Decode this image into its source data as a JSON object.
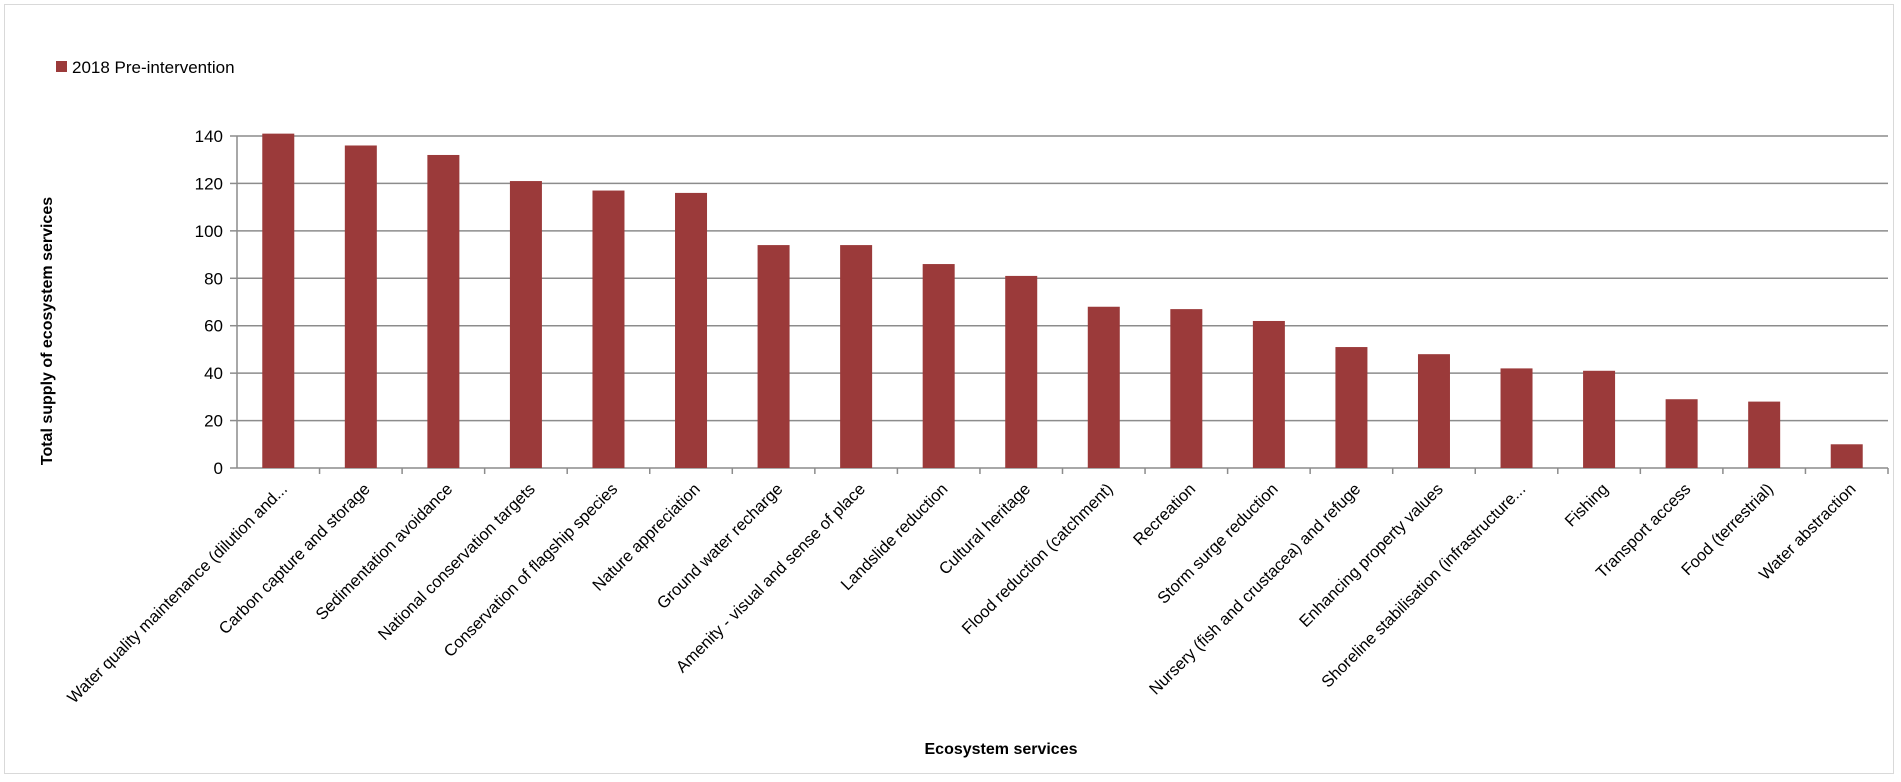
{
  "chart_data": {
    "type": "bar",
    "title": "",
    "xlabel": "Ecosystem services",
    "ylabel": "Total supply of ecosystem services",
    "ylim": [
      0,
      140
    ],
    "yticks": [
      0,
      20,
      40,
      60,
      80,
      100,
      120,
      140
    ],
    "grid": true,
    "legend_position": "top-left",
    "colors": {
      "bar": "#9b3a3a",
      "grid": "#8c8c8c"
    },
    "categories": [
      "Water quality maintenance (dilution and...",
      "Carbon capture and storage",
      "Sedimentation avoidance",
      "National conservation targets",
      "Conservation of flagship species",
      "Nature appreciation",
      "Ground water recharge",
      "Amenity - visual and sense of place",
      "Landslide  reduction",
      "Cultural heritage",
      "Flood reduction (catchment)",
      "Recreation",
      "Storm surge reduction",
      "Nursery (fish and crustacea) and refuge",
      "Enhancing property values",
      "Shoreline stabilisation (infrastructure...",
      "Fishing",
      "Transport access",
      "Food (terrestrial)",
      "Water abstraction"
    ],
    "series": [
      {
        "name": "2018 Pre-intervention",
        "values": [
          141,
          136,
          132,
          121,
          117,
          116,
          94,
          94,
          86,
          81,
          68,
          67,
          62,
          51,
          48,
          42,
          41,
          29,
          28,
          10
        ]
      }
    ]
  }
}
